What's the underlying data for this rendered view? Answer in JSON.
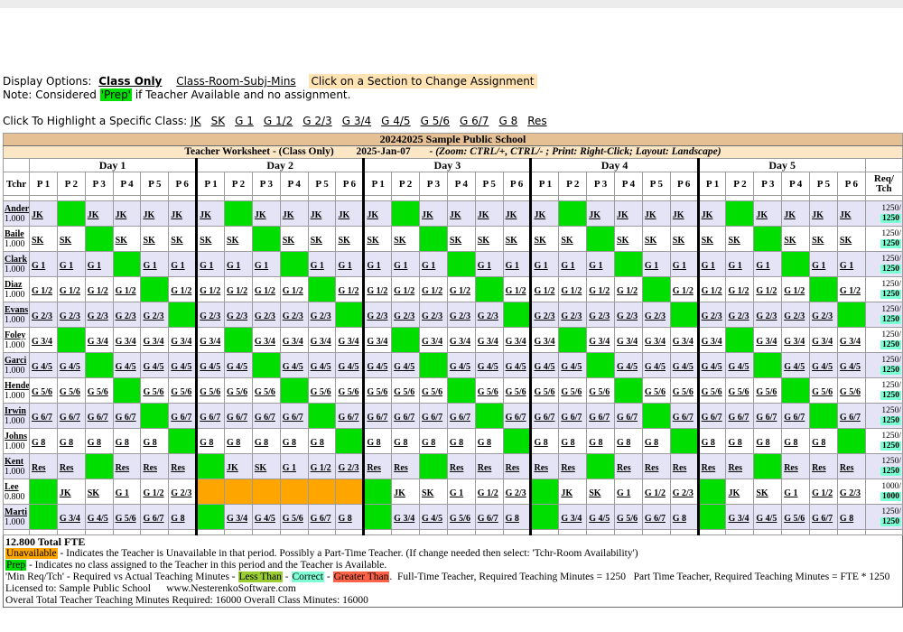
{
  "colors": {
    "prep": "#00DE00",
    "unavailable": "#FFA500",
    "correct": "#7FFFD4",
    "less_than": "#9ACD32",
    "greater_than": "#FF6347",
    "header_bar": "#E4C094",
    "subheader_bar": "#FBE6C6",
    "row_alt": "#E4E4F6",
    "note_highlight": "#FFE3B3"
  },
  "options_line": {
    "prefix": "Display Options:",
    "class_only": "Class Only",
    "class_room": "Class-Room-Subj-Mins",
    "change_note": "Click on a Section to Change Assignment"
  },
  "note_line": {
    "prefix": "Note: Considered",
    "prep": "'Prep'",
    "suffix": "if Teacher Available and no assignment."
  },
  "highlight_line": {
    "label": "Click To Highlight a Specific Class:",
    "classes": [
      "JK",
      "SK",
      "G 1",
      "G 1/2",
      "G 2/3",
      "G 3/4",
      "G 4/5",
      "G 5/6",
      "G 6/7",
      "G 8",
      "Res"
    ]
  },
  "table": {
    "school_title": "20242025 Sample Public School",
    "subtitle_main": "Teacher Worksheet - (Class Only)",
    "subtitle_date": "2025-Jan-07",
    "subtitle_hint": "- (Zoom: CTRL/+, CTRL/- ; Print: Right-Click; Layout: Landscape)",
    "tchr_header": "Tchr",
    "req_header_line1": "Req/",
    "req_header_line2": "Tch",
    "days": [
      "Day 1",
      "Day 2",
      "Day 3",
      "Day 4",
      "Day 5"
    ],
    "periods": [
      "P 1",
      "P 2",
      "P 3",
      "P 4",
      "P 5",
      "P 6"
    ],
    "cell_tokens": {
      "prep_marker": "*",
      "unavailable_marker": "!"
    },
    "teachers": [
      {
        "name": "Ander",
        "fte": "1.000",
        "req_top": "1250/",
        "req_bottom": "1250",
        "days": [
          [
            "JK",
            "*",
            "JK",
            "JK",
            "JK",
            "JK"
          ],
          [
            "JK",
            "*",
            "JK",
            "JK",
            "JK",
            "JK"
          ],
          [
            "JK",
            "*",
            "JK",
            "JK",
            "JK",
            "JK"
          ],
          [
            "JK",
            "*",
            "JK",
            "JK",
            "JK",
            "JK"
          ],
          [
            "JK",
            "*",
            "JK",
            "JK",
            "JK",
            "JK"
          ]
        ]
      },
      {
        "name": "Baile",
        "fte": "1.000",
        "req_top": "1250/",
        "req_bottom": "1250",
        "days": [
          [
            "SK",
            "SK",
            "*",
            "SK",
            "SK",
            "SK"
          ],
          [
            "SK",
            "SK",
            "*",
            "SK",
            "SK",
            "SK"
          ],
          [
            "SK",
            "SK",
            "*",
            "SK",
            "SK",
            "SK"
          ],
          [
            "SK",
            "SK",
            "*",
            "SK",
            "SK",
            "SK"
          ],
          [
            "SK",
            "SK",
            "*",
            "SK",
            "SK",
            "SK"
          ]
        ]
      },
      {
        "name": "Clark",
        "fte": "1.000",
        "req_top": "1250/",
        "req_bottom": "1250",
        "days": [
          [
            "G 1",
            "G 1",
            "G 1",
            "*",
            "G 1",
            "G 1"
          ],
          [
            "G 1",
            "G 1",
            "G 1",
            "*",
            "G 1",
            "G 1"
          ],
          [
            "G 1",
            "G 1",
            "G 1",
            "*",
            "G 1",
            "G 1"
          ],
          [
            "G 1",
            "G 1",
            "G 1",
            "*",
            "G 1",
            "G 1"
          ],
          [
            "G 1",
            "G 1",
            "G 1",
            "*",
            "G 1",
            "G 1"
          ]
        ]
      },
      {
        "name": "Diaz",
        "fte": "1.000",
        "req_top": "1250/",
        "req_bottom": "1250",
        "days": [
          [
            "G 1/2",
            "G 1/2",
            "G 1/2",
            "G 1/2",
            "*",
            "G 1/2"
          ],
          [
            "G 1/2",
            "G 1/2",
            "G 1/2",
            "G 1/2",
            "*",
            "G 1/2"
          ],
          [
            "G 1/2",
            "G 1/2",
            "G 1/2",
            "G 1/2",
            "*",
            "G 1/2"
          ],
          [
            "G 1/2",
            "G 1/2",
            "G 1/2",
            "G 1/2",
            "*",
            "G 1/2"
          ],
          [
            "G 1/2",
            "G 1/2",
            "G 1/2",
            "G 1/2",
            "*",
            "G 1/2"
          ]
        ]
      },
      {
        "name": "Evans",
        "fte": "1.000",
        "req_top": "1250/",
        "req_bottom": "1250",
        "days": [
          [
            "G 2/3",
            "G 2/3",
            "G 2/3",
            "G 2/3",
            "G 2/3",
            "*"
          ],
          [
            "G 2/3",
            "G 2/3",
            "G 2/3",
            "G 2/3",
            "G 2/3",
            "*"
          ],
          [
            "G 2/3",
            "G 2/3",
            "G 2/3",
            "G 2/3",
            "G 2/3",
            "*"
          ],
          [
            "G 2/3",
            "G 2/3",
            "G 2/3",
            "G 2/3",
            "G 2/3",
            "*"
          ],
          [
            "G 2/3",
            "G 2/3",
            "G 2/3",
            "G 2/3",
            "G 2/3",
            "*"
          ]
        ]
      },
      {
        "name": "Foley",
        "fte": "1.000",
        "req_top": "1250/",
        "req_bottom": "1250",
        "days": [
          [
            "G 3/4",
            "*",
            "G 3/4",
            "G 3/4",
            "G 3/4",
            "G 3/4"
          ],
          [
            "G 3/4",
            "*",
            "G 3/4",
            "G 3/4",
            "G 3/4",
            "G 3/4"
          ],
          [
            "G 3/4",
            "*",
            "G 3/4",
            "G 3/4",
            "G 3/4",
            "G 3/4"
          ],
          [
            "G 3/4",
            "*",
            "G 3/4",
            "G 3/4",
            "G 3/4",
            "G 3/4"
          ],
          [
            "G 3/4",
            "*",
            "G 3/4",
            "G 3/4",
            "G 3/4",
            "G 3/4"
          ]
        ]
      },
      {
        "name": "Garci",
        "fte": "1.000",
        "req_top": "1250/",
        "req_bottom": "1250",
        "days": [
          [
            "G 4/5",
            "G 4/5",
            "*",
            "G 4/5",
            "G 4/5",
            "G 4/5"
          ],
          [
            "G 4/5",
            "G 4/5",
            "*",
            "G 4/5",
            "G 4/5",
            "G 4/5"
          ],
          [
            "G 4/5",
            "G 4/5",
            "*",
            "G 4/5",
            "G 4/5",
            "G 4/5"
          ],
          [
            "G 4/5",
            "G 4/5",
            "*",
            "G 4/5",
            "G 4/5",
            "G 4/5"
          ],
          [
            "G 4/5",
            "G 4/5",
            "*",
            "G 4/5",
            "G 4/5",
            "G 4/5"
          ]
        ]
      },
      {
        "name": "Hende",
        "fte": "1.000",
        "req_top": "1250/",
        "req_bottom": "1250",
        "days": [
          [
            "G 5/6",
            "G 5/6",
            "G 5/6",
            "*",
            "G 5/6",
            "G 5/6"
          ],
          [
            "G 5/6",
            "G 5/6",
            "G 5/6",
            "*",
            "G 5/6",
            "G 5/6"
          ],
          [
            "G 5/6",
            "G 5/6",
            "G 5/6",
            "*",
            "G 5/6",
            "G 5/6"
          ],
          [
            "G 5/6",
            "G 5/6",
            "G 5/6",
            "*",
            "G 5/6",
            "G 5/6"
          ],
          [
            "G 5/6",
            "G 5/6",
            "G 5/6",
            "*",
            "G 5/6",
            "G 5/6"
          ]
        ]
      },
      {
        "name": "Irwin",
        "fte": "1.000",
        "req_top": "1250/",
        "req_bottom": "1250",
        "days": [
          [
            "G 6/7",
            "G 6/7",
            "G 6/7",
            "G 6/7",
            "*",
            "G 6/7"
          ],
          [
            "G 6/7",
            "G 6/7",
            "G 6/7",
            "G 6/7",
            "*",
            "G 6/7"
          ],
          [
            "G 6/7",
            "G 6/7",
            "G 6/7",
            "G 6/7",
            "*",
            "G 6/7"
          ],
          [
            "G 6/7",
            "G 6/7",
            "G 6/7",
            "G 6/7",
            "*",
            "G 6/7"
          ],
          [
            "G 6/7",
            "G 6/7",
            "G 6/7",
            "G 6/7",
            "*",
            "G 6/7"
          ]
        ]
      },
      {
        "name": "Johns",
        "fte": "1.000",
        "req_top": "1250/",
        "req_bottom": "1250",
        "days": [
          [
            "G 8",
            "G 8",
            "G 8",
            "G 8",
            "G 8",
            "*"
          ],
          [
            "G 8",
            "G 8",
            "G 8",
            "G 8",
            "G 8",
            "*"
          ],
          [
            "G 8",
            "G 8",
            "G 8",
            "G 8",
            "G 8",
            "*"
          ],
          [
            "G 8",
            "G 8",
            "G 8",
            "G 8",
            "G 8",
            "*"
          ],
          [
            "G 8",
            "G 8",
            "G 8",
            "G 8",
            "G 8",
            "*"
          ]
        ]
      },
      {
        "name": "Kent",
        "fte": "1.000",
        "req_top": "1250/",
        "req_bottom": "1250",
        "days": [
          [
            "Res",
            "Res",
            "*",
            "Res",
            "Res",
            "Res"
          ],
          [
            "*",
            "JK",
            "SK",
            "G 1",
            "G 1/2",
            "G 2/3"
          ],
          [
            "Res",
            "Res",
            "*",
            "Res",
            "Res",
            "Res"
          ],
          [
            "Res",
            "Res",
            "*",
            "Res",
            "Res",
            "Res"
          ],
          [
            "Res",
            "Res",
            "*",
            "Res",
            "Res",
            "Res"
          ]
        ]
      },
      {
        "name": "Lee",
        "fte": "0.800",
        "req_top": "1000/",
        "req_bottom": "1000",
        "days": [
          [
            "*",
            "JK",
            "SK",
            "G 1",
            "G 1/2",
            "G 2/3"
          ],
          [
            "!",
            "!",
            "!",
            "!",
            "!",
            "!"
          ],
          [
            "*",
            "JK",
            "SK",
            "G 1",
            "G 1/2",
            "G 2/3"
          ],
          [
            "*",
            "JK",
            "SK",
            "G 1",
            "G 1/2",
            "G 2/3"
          ],
          [
            "*",
            "JK",
            "SK",
            "G 1",
            "G 1/2",
            "G 2/3"
          ]
        ]
      },
      {
        "name": "Marti",
        "fte": "1.000",
        "req_top": "1250/",
        "req_bottom": "1250",
        "days": [
          [
            "*",
            "G 3/4",
            "G 4/5",
            "G 5/6",
            "G 6/7",
            "G 8"
          ],
          [
            "*",
            "G 3/4",
            "G 4/5",
            "G 5/6",
            "G 6/7",
            "G 8"
          ],
          [
            "*",
            "G 3/4",
            "G 4/5",
            "G 5/6",
            "G 6/7",
            "G 8"
          ],
          [
            "*",
            "G 3/4",
            "G 4/5",
            "G 5/6",
            "G 6/7",
            "G 8"
          ],
          [
            "*",
            "G 3/4",
            "G 4/5",
            "G 5/6",
            "G 6/7",
            "G 8"
          ]
        ]
      }
    ]
  },
  "footer": {
    "total_fte": "12.800 Total FTE",
    "unavailable_tag": "Unavailable",
    "unavailable_text": " - Indicates the Teacher is Unavailable in that period. Possibly a Part-Time Teacher. (If change needed then select: 'Tchr-Room Availability')",
    "prep_tag": "Prep",
    "prep_text": " - Indicates no class assigned to the Teacher in this period and the Teacher is Available.",
    "minreq_prefix": "'Min Req/Tch' - Required vs Actual Teaching Minutes - ",
    "less_than": "Less Than",
    "sep1": " - ",
    "correct": "Correct",
    "sep2": " - ",
    "greater_than": "Greater Than",
    "minreq_suffix": ".  Full-Time Teacher, Required Teaching Minutes = 1250   Part Time Teacher, Required Teaching Minutes = FTE * 1250",
    "licensed": "Licensed to: Sample Public School      www.NesterenkoSoftware.com",
    "overall": "Overal Total Teacher Teaching Minutes Required: 16000 Overall Class Minutes: 16000"
  }
}
